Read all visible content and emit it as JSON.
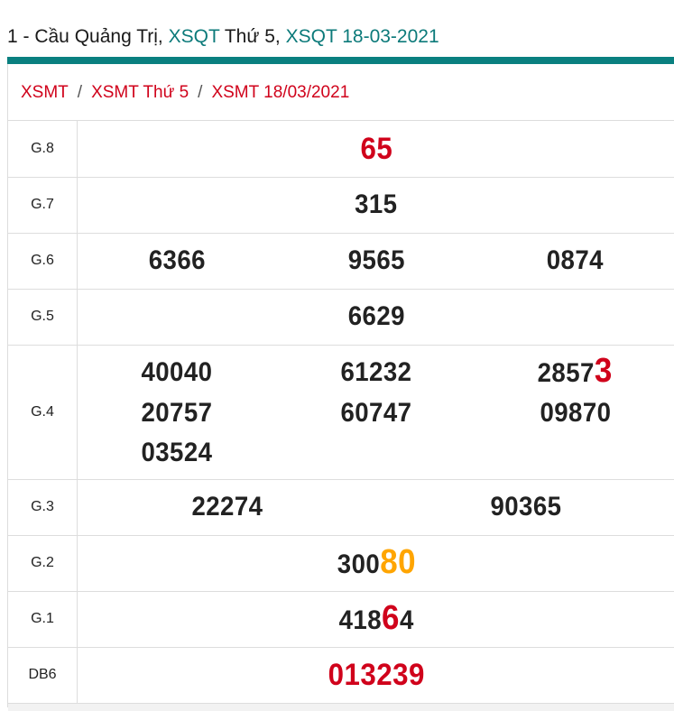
{
  "header": {
    "prefix": "1 - Cầu Quảng Trị, ",
    "link1": "XSQT",
    "middle": " Thứ 5, ",
    "link2": "XSQT 18-03-2021"
  },
  "colors": {
    "accent": "#0a8080",
    "red": "#d0021b",
    "orange": "#ffa500"
  },
  "breadcrumb": {
    "items": [
      "XSMT",
      "XSMT Thứ 5",
      "XSMT 18/03/2021"
    ],
    "separator": "/"
  },
  "results": [
    {
      "label": "G.8",
      "cols": 1,
      "numbers": [
        {
          "text": "",
          "hl": "65",
          "hl_color": "#d0021b",
          "whole": true
        }
      ]
    },
    {
      "label": "G.7",
      "cols": 1,
      "numbers": [
        {
          "text": "315"
        }
      ]
    },
    {
      "label": "G.6",
      "cols": 3,
      "numbers": [
        {
          "text": "6366"
        },
        {
          "text": "9565"
        },
        {
          "text": "0874"
        }
      ]
    },
    {
      "label": "G.5",
      "cols": 1,
      "numbers": [
        {
          "text": "6629"
        }
      ]
    },
    {
      "label": "G.4",
      "cols": 3,
      "numbers": [
        {
          "text": "40040"
        },
        {
          "text": "61232"
        },
        {
          "text": "2857",
          "hl": "3",
          "hl_color": "#d0021b"
        },
        {
          "text": "20757"
        },
        {
          "text": "60747"
        },
        {
          "text": "09870"
        },
        {
          "text": "03524"
        }
      ]
    },
    {
      "label": "G.3",
      "cols": 2,
      "numbers": [
        {
          "text": "22274"
        },
        {
          "text": "90365"
        }
      ]
    },
    {
      "label": "G.2",
      "cols": 1,
      "numbers": [
        {
          "text": "300",
          "hl": "80",
          "hl_color": "#ffa500"
        }
      ]
    },
    {
      "label": "G.1",
      "cols": 1,
      "numbers": [
        {
          "text": "418",
          "hl": "6",
          "hl_color": "#d0021b",
          "tail": "4"
        }
      ]
    },
    {
      "label": "DB6",
      "cols": 1,
      "numbers": [
        {
          "text": "",
          "hl": "013239",
          "hl_color": "#d0021b",
          "whole": true
        }
      ]
    }
  ]
}
